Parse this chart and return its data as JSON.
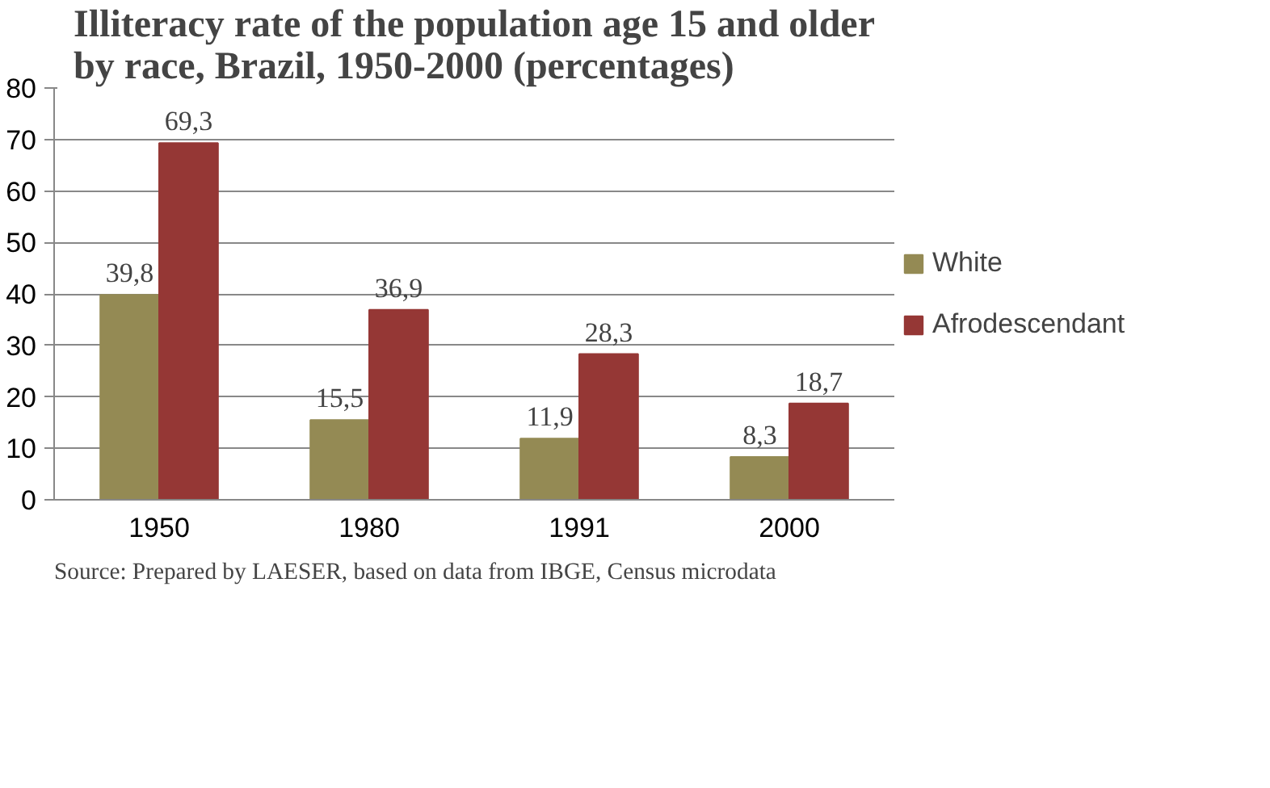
{
  "chart_data": {
    "type": "bar",
    "title": "Illiteracy rate of the population age 15 and older\nby race, Brazil, 1950-2000 (percentages)",
    "categories": [
      "1950",
      "1980",
      "1991",
      "2000"
    ],
    "series": [
      {
        "name": "White",
        "color": "#948a54",
        "values": [
          39.8,
          15.5,
          11.9,
          8.3
        ],
        "value_labels": [
          "39,8",
          "15,5",
          "11,9",
          "8,3"
        ]
      },
      {
        "name": "Afrodescendant",
        "color": "#953735",
        "values": [
          69.3,
          36.9,
          28.3,
          18.7
        ],
        "value_labels": [
          "69,3",
          "36,9",
          "28,3",
          "18,7"
        ]
      }
    ],
    "ylim": [
      0,
      80
    ],
    "yticks": [
      0,
      10,
      20,
      30,
      40,
      50,
      60,
      70,
      80
    ],
    "grid": "y",
    "legend": "right",
    "annotations": [
      "Source: Prepared by LAESER, based on data from IBGE, Census microdata"
    ]
  }
}
